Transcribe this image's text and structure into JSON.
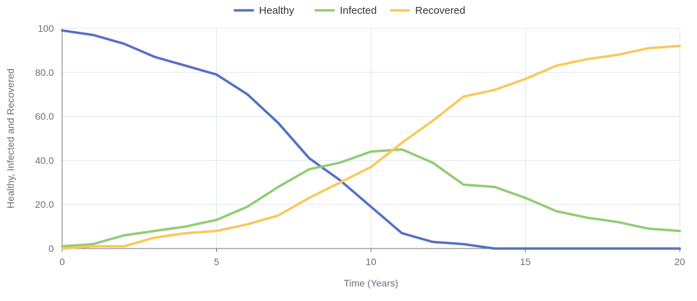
{
  "chart_data": {
    "type": "line",
    "xlabel": "Time (Years)",
    "ylabel": "Healthy, Infected and Recovered",
    "xlim": [
      0,
      20
    ],
    "ylim": [
      0,
      100
    ],
    "xticks": [
      0,
      5,
      10,
      15,
      20
    ],
    "yticks": [
      0,
      20,
      40,
      60,
      80,
      100
    ],
    "ytick_labels": [
      "0",
      "20.0",
      "40.0",
      "60.0",
      "80.0",
      "100"
    ],
    "grid": true,
    "legend_position": "top-center",
    "x": [
      0,
      1,
      2,
      3,
      4,
      5,
      6,
      7,
      8,
      9,
      10,
      11,
      12,
      13,
      14,
      15,
      16,
      17,
      18,
      19,
      20
    ],
    "series": [
      {
        "name": "Healthy",
        "color": "#5470c6",
        "values": [
          99,
          97,
          93,
          87,
          83,
          79,
          70,
          57,
          41,
          31,
          19,
          7,
          3,
          2,
          0,
          0,
          0,
          0,
          0,
          0,
          0
        ]
      },
      {
        "name": "Infected",
        "color": "#91cc75",
        "values": [
          1,
          2,
          6,
          8,
          10,
          13,
          19,
          28,
          36,
          39,
          44,
          45,
          39,
          29,
          28,
          23,
          17,
          14,
          12,
          9,
          8
        ]
      },
      {
        "name": "Recovered",
        "color": "#fac858",
        "values": [
          0,
          1,
          1,
          5,
          7,
          8,
          11,
          15,
          23,
          30,
          37,
          48,
          58,
          69,
          72,
          77,
          83,
          86,
          88,
          91,
          92
        ]
      }
    ]
  }
}
